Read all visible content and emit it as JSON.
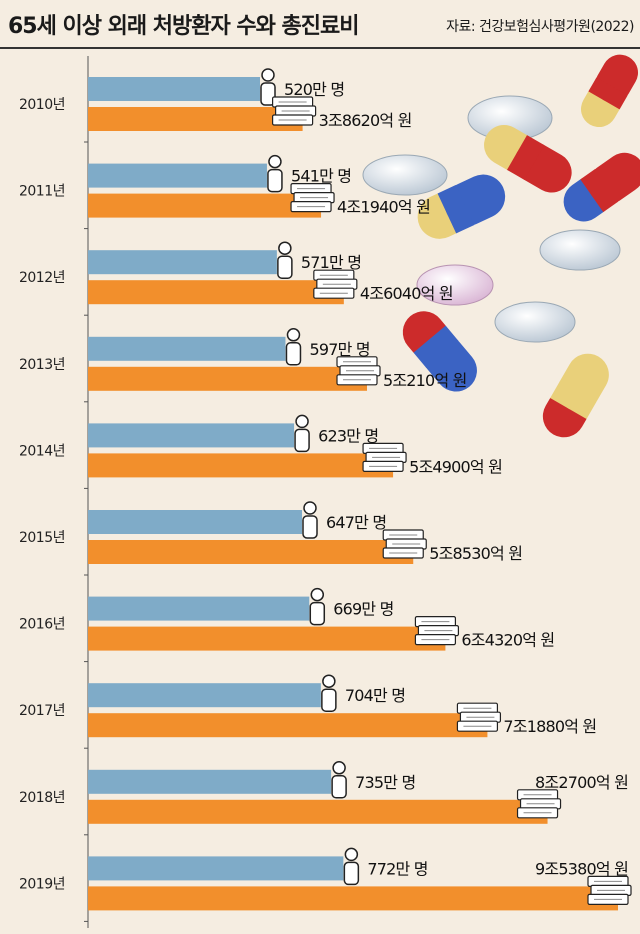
{
  "chart_data": {
    "type": "bar",
    "orientation": "horizontal",
    "title": "65세 이상 외래 처방환자 수와 총진료비",
    "source": "자료: 건강보험심사평가원(2022)",
    "categories": [
      "2010년",
      "2011년",
      "2012년",
      "2013년",
      "2014년",
      "2015년",
      "2016년",
      "2017년",
      "2018년",
      "2019년"
    ],
    "series": [
      {
        "name": "외래 처방환자 수",
        "unit": "만 명",
        "color": "#7fabc8",
        "icon": "person-icon",
        "values": [
          520,
          541,
          571,
          597,
          623,
          647,
          669,
          704,
          735,
          772
        ],
        "labels": [
          "520만 명",
          "541만 명",
          "571만 명",
          "597만 명",
          "623만 명",
          "647만 명",
          "669만 명",
          "704만 명",
          "735만 명",
          "772만 명"
        ]
      },
      {
        "name": "총진료비",
        "unit": "억 원",
        "color": "#f28f2c",
        "icon": "money-stack-icon",
        "values": [
          38620,
          41940,
          46040,
          50210,
          54900,
          58530,
          64320,
          71880,
          82700,
          95380
        ],
        "labels": [
          "3조8620억 원",
          "4조1940억 원",
          "4조6040억 원",
          "5조210억 원",
          "5조4900억 원",
          "5조8530억 원",
          "6조4320억 원",
          "7조1880억 원",
          "8조2700억 원",
          "9조5380억 원"
        ]
      }
    ]
  }
}
